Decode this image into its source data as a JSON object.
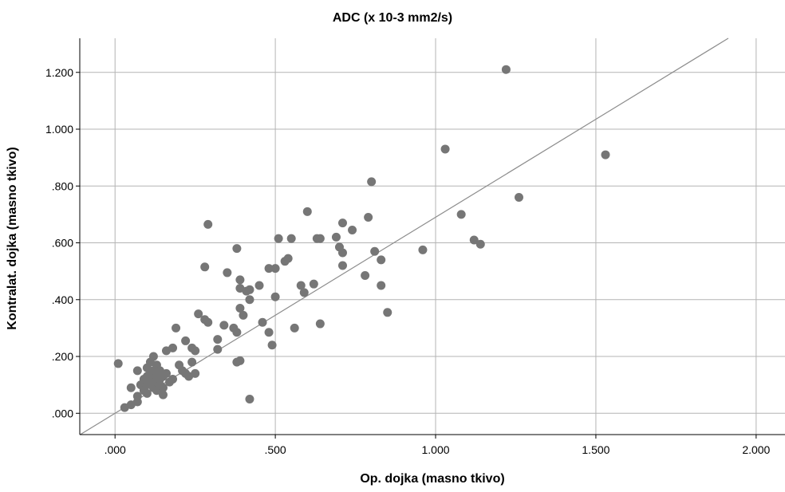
{
  "chart_data": {
    "type": "scatter",
    "title": "ADC (x 10-3 mm2/s)",
    "xlabel": "Op. dojka (masno tkivo)",
    "ylabel": "Kontralat. dojka (masno tkivo)",
    "xlim": [
      -0.11,
      2.09
    ],
    "ylim": [
      -0.075,
      1.32
    ],
    "x_ticks": [
      0.0,
      0.5,
      1.0,
      1.5,
      2.0
    ],
    "x_tick_labels": [
      ".000",
      ".500",
      "1.000",
      "1.500",
      "2.000"
    ],
    "y_ticks": [
      0.0,
      0.2,
      0.4,
      0.6,
      0.8,
      1.0,
      1.2
    ],
    "y_tick_labels": [
      ".000",
      ".200",
      ".400",
      ".600",
      ".800",
      "1.000",
      "1.200"
    ],
    "grid": true,
    "reference_line": {
      "slope": 0.69,
      "intercept": 0.0
    },
    "colors": {
      "points": "#767676",
      "grid": "#b4b4b4",
      "fit_line": "#8c8c8c",
      "axis": "#000000"
    },
    "points": [
      [
        0.01,
        0.175
      ],
      [
        0.03,
        0.02
      ],
      [
        0.05,
        0.03
      ],
      [
        0.05,
        0.09
      ],
      [
        0.07,
        0.04
      ],
      [
        0.07,
        0.06
      ],
      [
        0.07,
        0.15
      ],
      [
        0.08,
        0.1
      ],
      [
        0.09,
        0.12
      ],
      [
        0.09,
        0.08
      ],
      [
        0.1,
        0.13
      ],
      [
        0.1,
        0.16
      ],
      [
        0.1,
        0.1
      ],
      [
        0.1,
        0.07
      ],
      [
        0.11,
        0.14
      ],
      [
        0.11,
        0.18
      ],
      [
        0.11,
        0.11
      ],
      [
        0.12,
        0.2
      ],
      [
        0.12,
        0.09
      ],
      [
        0.12,
        0.15
      ],
      [
        0.12,
        0.12
      ],
      [
        0.13,
        0.13
      ],
      [
        0.13,
        0.08
      ],
      [
        0.13,
        0.17
      ],
      [
        0.13,
        0.11
      ],
      [
        0.14,
        0.1
      ],
      [
        0.14,
        0.15
      ],
      [
        0.14,
        0.12
      ],
      [
        0.15,
        0.065
      ],
      [
        0.15,
        0.13
      ],
      [
        0.15,
        0.09
      ],
      [
        0.16,
        0.22
      ],
      [
        0.16,
        0.14
      ],
      [
        0.17,
        0.11
      ],
      [
        0.18,
        0.23
      ],
      [
        0.18,
        0.12
      ],
      [
        0.19,
        0.3
      ],
      [
        0.2,
        0.17
      ],
      [
        0.21,
        0.15
      ],
      [
        0.22,
        0.14
      ],
      [
        0.22,
        0.255
      ],
      [
        0.23,
        0.13
      ],
      [
        0.24,
        0.23
      ],
      [
        0.24,
        0.18
      ],
      [
        0.25,
        0.14
      ],
      [
        0.25,
        0.22
      ],
      [
        0.26,
        0.35
      ],
      [
        0.28,
        0.33
      ],
      [
        0.28,
        0.515
      ],
      [
        0.29,
        0.32
      ],
      [
        0.29,
        0.665
      ],
      [
        0.32,
        0.225
      ],
      [
        0.32,
        0.26
      ],
      [
        0.34,
        0.31
      ],
      [
        0.35,
        0.495
      ],
      [
        0.37,
        0.3
      ],
      [
        0.38,
        0.18
      ],
      [
        0.38,
        0.58
      ],
      [
        0.38,
        0.285
      ],
      [
        0.39,
        0.185
      ],
      [
        0.39,
        0.37
      ],
      [
        0.39,
        0.44
      ],
      [
        0.39,
        0.47
      ],
      [
        0.4,
        0.345
      ],
      [
        0.41,
        0.43
      ],
      [
        0.42,
        0.05
      ],
      [
        0.42,
        0.4
      ],
      [
        0.42,
        0.435
      ],
      [
        0.45,
        0.45
      ],
      [
        0.46,
        0.32
      ],
      [
        0.48,
        0.285
      ],
      [
        0.48,
        0.51
      ],
      [
        0.49,
        0.24
      ],
      [
        0.5,
        0.51
      ],
      [
        0.5,
        0.41
      ],
      [
        0.51,
        0.615
      ],
      [
        0.53,
        0.535
      ],
      [
        0.54,
        0.545
      ],
      [
        0.55,
        0.615
      ],
      [
        0.56,
        0.3
      ],
      [
        0.58,
        0.45
      ],
      [
        0.59,
        0.425
      ],
      [
        0.6,
        0.71
      ],
      [
        0.62,
        0.455
      ],
      [
        0.63,
        0.615
      ],
      [
        0.64,
        0.315
      ],
      [
        0.64,
        0.615
      ],
      [
        0.69,
        0.62
      ],
      [
        0.7,
        0.585
      ],
      [
        0.71,
        0.565
      ],
      [
        0.71,
        0.52
      ],
      [
        0.71,
        0.67
      ],
      [
        0.74,
        0.645
      ],
      [
        0.78,
        0.485
      ],
      [
        0.79,
        0.69
      ],
      [
        0.8,
        0.815
      ],
      [
        0.81,
        0.57
      ],
      [
        0.83,
        0.54
      ],
      [
        0.83,
        0.45
      ],
      [
        0.85,
        0.355
      ],
      [
        0.96,
        0.575
      ],
      [
        1.03,
        0.93
      ],
      [
        1.08,
        0.7
      ],
      [
        1.12,
        0.61
      ],
      [
        1.14,
        0.595
      ],
      [
        1.22,
        1.21
      ],
      [
        1.26,
        0.76
      ],
      [
        1.53,
        0.91
      ]
    ]
  }
}
